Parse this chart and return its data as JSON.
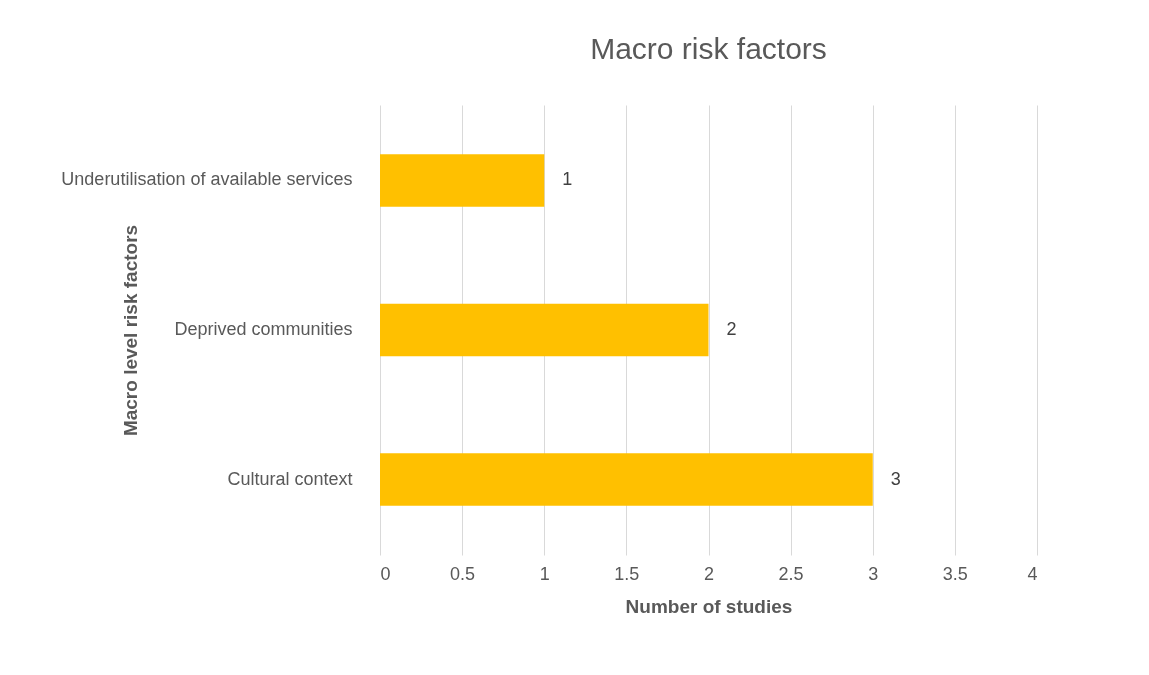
{
  "chart_data": {
    "type": "bar",
    "orientation": "horizontal",
    "title": "Macro risk factors",
    "xlabel": "Number of studies",
    "ylabel": "Macro level risk factors",
    "categories": [
      "Underutilisation of available services",
      "Deprived communities",
      "Cultural context"
    ],
    "values": [
      1,
      2,
      3
    ],
    "color": "#ffc000",
    "xlim": [
      0,
      4
    ],
    "xticks": [
      0,
      0.5,
      1,
      1.5,
      2,
      2.5,
      3,
      3.5,
      4
    ],
    "grid": "x",
    "data_labels": true
  }
}
